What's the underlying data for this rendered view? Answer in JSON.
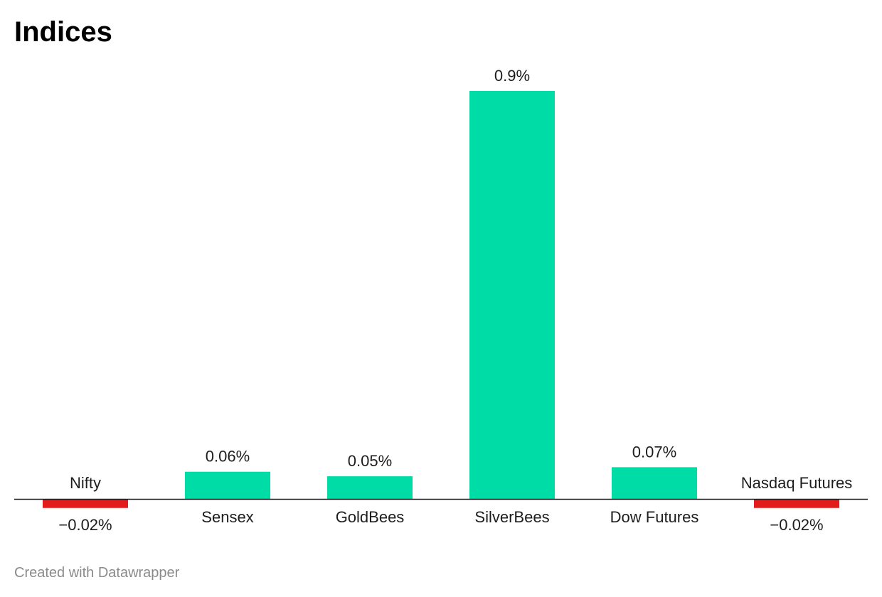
{
  "chart_data": {
    "type": "bar",
    "title": "Indices",
    "categories": [
      "Nifty",
      "Sensex",
      "GoldBees",
      "SilverBees",
      "Dow Futures",
      "Nasdaq Futures"
    ],
    "values": [
      -0.02,
      0.06,
      0.05,
      0.9,
      0.07,
      -0.02
    ],
    "value_labels": [
      "−0.02%",
      "0.06%",
      "0.05%",
      "0.9%",
      "0.07%",
      "−0.02%"
    ],
    "ylim": [
      -0.02,
      0.9
    ],
    "grid": false,
    "colors": {
      "positive": "#00dca6",
      "negative": "#e21b1b",
      "baseline": "#1d1d1d"
    }
  },
  "footer": {
    "credit": "Created with Datawrapper"
  }
}
